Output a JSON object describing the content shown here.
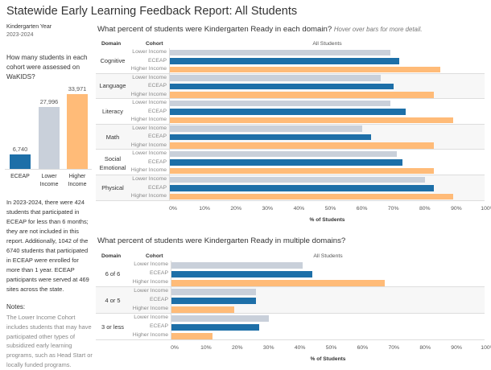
{
  "title": "Statewide Early Learning Feedback Report:  All Students",
  "filter": {
    "label": "Kindergarten Year",
    "value": "2023-2024"
  },
  "colors": {
    "Lower Income": "#c9d0da",
    "ECEAP": "#1d6fa8",
    "Higher Income": "#ffbb78"
  },
  "counts": {
    "question": "How many students in each cohort were assessed on WaKIDS?",
    "chart_data": {
      "type": "bar",
      "categories": [
        "ECEAP",
        "Lower Income",
        "Higher Income"
      ],
      "values": [
        6740,
        27996,
        33971
      ],
      "labels": [
        "6,740",
        "27,996",
        "33,971"
      ],
      "category_lines": [
        [
          "ECEAP"
        ],
        [
          "Lower",
          "Income"
        ],
        [
          "Higher",
          "Income"
        ]
      ]
    }
  },
  "note": "In 2023-2024, there were 424 students that participated in ECEAP for less than 6 months; they are not included in this report.  Additionally, 1042 of the 6740 students that participated in ECEAP were enrolled for more than 1 year. ECEAP participants were served at 469 sites across the state.",
  "notes": {
    "heading": "Notes:",
    "body": "The Lower Income Cohort includes students that may have participated other types of subsidized early learning programs, such as Head Start or locally funded programs."
  },
  "chart_data": [
    {
      "type": "bar",
      "title": "What percent of students were Kindergarten Ready in each domain?",
      "subtitle": "Hover over bars for more detail.",
      "header": {
        "domain": "Domain",
        "cohort": "Cohort",
        "column": "All Students"
      },
      "xlabel": "% of Students",
      "xlim": [
        0,
        100
      ],
      "ticks": [
        "0%",
        "10%",
        "20%",
        "30%",
        "40%",
        "50%",
        "60%",
        "70%",
        "80%",
        "90%",
        "100%"
      ],
      "cohorts": [
        "Lower Income",
        "ECEAP",
        "Higher Income"
      ],
      "groups": [
        {
          "domain": "Cognitive",
          "values": [
            70,
            73,
            86
          ]
        },
        {
          "domain": "Language",
          "values": [
            67,
            71,
            84
          ]
        },
        {
          "domain": "Literacy",
          "values": [
            70,
            75,
            90
          ]
        },
        {
          "domain": "Math",
          "values": [
            61,
            64,
            84
          ]
        },
        {
          "domain": "Social Emotional",
          "values": [
            72,
            74,
            84
          ]
        },
        {
          "domain": "Physical",
          "values": [
            81,
            84,
            90
          ]
        }
      ]
    },
    {
      "type": "bar",
      "title": "What percent of students were Kindergarten Ready in multiple domains?",
      "header": {
        "domain": "Domain",
        "cohort": "Cohort",
        "column": "All Students"
      },
      "xlabel": "% of Students",
      "xlim": [
        0,
        100
      ],
      "ticks": [
        "0%",
        "10%",
        "20%",
        "30%",
        "40%",
        "50%",
        "60%",
        "70%",
        "80%",
        "90%",
        "100%"
      ],
      "cohorts": [
        "Lower Income",
        "ECEAP",
        "Higher Income"
      ],
      "groups": [
        {
          "domain": "6 of 6",
          "values": [
            42,
            45,
            68
          ]
        },
        {
          "domain": "4 or 5",
          "values": [
            27,
            27,
            20
          ]
        },
        {
          "domain": "3 or less",
          "values": [
            31,
            28,
            13
          ]
        }
      ]
    }
  ]
}
